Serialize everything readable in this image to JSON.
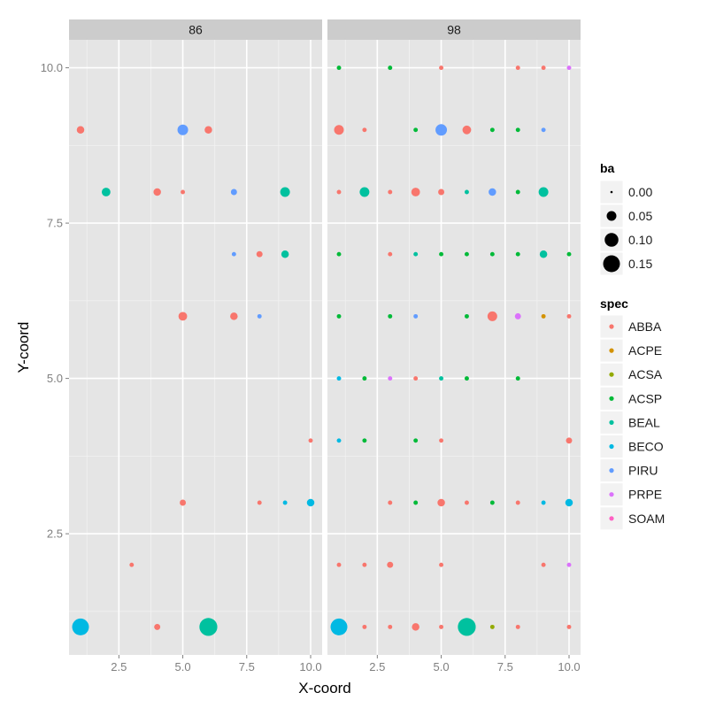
{
  "chart_data": {
    "type": "scatter",
    "xlabel": "X-coord",
    "ylabel": "Y-coord",
    "xlim": [
      0.55,
      10.45
    ],
    "ylim": [
      0.55,
      10.45
    ],
    "x_ticks": [
      2.5,
      5.0,
      7.5,
      10.0
    ],
    "x_tick_labels": [
      "2.5",
      "5.0",
      "7.5",
      "10.0"
    ],
    "y_ticks": [
      2.5,
      5.0,
      7.5,
      10.0
    ],
    "y_tick_labels": [
      "2.5",
      "5.0",
      "7.5",
      "10.0"
    ],
    "grid": true,
    "facets": [
      "86",
      "98"
    ],
    "legend_placement": "right",
    "size_legend": {
      "title": "ba",
      "breaks": [
        0.0,
        0.05,
        0.1,
        0.15
      ],
      "labels": [
        "0.00",
        "0.05",
        "0.10",
        "0.15"
      ]
    },
    "color_legend": {
      "title": "spec",
      "species": [
        "ABBA",
        "ACPE",
        "ACSA",
        "ACSP",
        "BEAL",
        "BECO",
        "PIRU",
        "PRPE",
        "SOAM"
      ],
      "colors": [
        "#F8766D",
        "#D39200",
        "#93AA00",
        "#00BA38",
        "#00C19F",
        "#00B9E3",
        "#619CFF",
        "#DB72FB",
        "#FF61C3"
      ]
    },
    "points": [
      {
        "facet": "86",
        "x": 1,
        "y": 9,
        "spec": "ABBA",
        "ba": 0.03
      },
      {
        "facet": "86",
        "x": 5,
        "y": 9,
        "spec": "PIRU",
        "ba": 0.06
      },
      {
        "facet": "86",
        "x": 6,
        "y": 9,
        "spec": "ABBA",
        "ba": 0.03
      },
      {
        "facet": "86",
        "x": 2,
        "y": 8,
        "spec": "BEAL",
        "ba": 0.04
      },
      {
        "facet": "86",
        "x": 4,
        "y": 8,
        "spec": "ABBA",
        "ba": 0.03
      },
      {
        "facet": "86",
        "x": 5,
        "y": 8,
        "spec": "ABBA",
        "ba": 0.01
      },
      {
        "facet": "86",
        "x": 7,
        "y": 8,
        "spec": "PIRU",
        "ba": 0.02
      },
      {
        "facet": "86",
        "x": 9,
        "y": 8,
        "spec": "BEAL",
        "ba": 0.05
      },
      {
        "facet": "86",
        "x": 7,
        "y": 7,
        "spec": "PIRU",
        "ba": 0.01
      },
      {
        "facet": "86",
        "x": 8,
        "y": 7,
        "spec": "ABBA",
        "ba": 0.02
      },
      {
        "facet": "86",
        "x": 9,
        "y": 7,
        "spec": "BEAL",
        "ba": 0.03
      },
      {
        "facet": "86",
        "x": 5,
        "y": 6,
        "spec": "ABBA",
        "ba": 0.04
      },
      {
        "facet": "86",
        "x": 7,
        "y": 6,
        "spec": "ABBA",
        "ba": 0.03
      },
      {
        "facet": "86",
        "x": 8,
        "y": 6,
        "spec": "PIRU",
        "ba": 0.01
      },
      {
        "facet": "86",
        "x": 10,
        "y": 4,
        "spec": "ABBA",
        "ba": 0.01
      },
      {
        "facet": "86",
        "x": 5,
        "y": 3,
        "spec": "ABBA",
        "ba": 0.02
      },
      {
        "facet": "86",
        "x": 8,
        "y": 3,
        "spec": "ABBA",
        "ba": 0.01
      },
      {
        "facet": "86",
        "x": 9,
        "y": 3,
        "spec": "BECO",
        "ba": 0.01
      },
      {
        "facet": "86",
        "x": 10,
        "y": 3,
        "spec": "BECO",
        "ba": 0.03
      },
      {
        "facet": "86",
        "x": 3,
        "y": 2,
        "spec": "ABBA",
        "ba": 0.01
      },
      {
        "facet": "86",
        "x": 1,
        "y": 1,
        "spec": "BECO",
        "ba": 0.15
      },
      {
        "facet": "86",
        "x": 4,
        "y": 1,
        "spec": "ABBA",
        "ba": 0.02
      },
      {
        "facet": "86",
        "x": 6,
        "y": 1,
        "spec": "BEAL",
        "ba": 0.17
      },
      {
        "facet": "98",
        "x": 1,
        "y": 10,
        "spec": "ACSP",
        "ba": 0.01
      },
      {
        "facet": "98",
        "x": 3,
        "y": 10,
        "spec": "ACSP",
        "ba": 0.01
      },
      {
        "facet": "98",
        "x": 5,
        "y": 10,
        "spec": "ABBA",
        "ba": 0.01
      },
      {
        "facet": "98",
        "x": 8,
        "y": 10,
        "spec": "ABBA",
        "ba": 0.01
      },
      {
        "facet": "98",
        "x": 9,
        "y": 10,
        "spec": "ABBA",
        "ba": 0.01
      },
      {
        "facet": "98",
        "x": 10,
        "y": 10,
        "spec": "PRPE",
        "ba": 0.01
      },
      {
        "facet": "98",
        "x": 1,
        "y": 9,
        "spec": "ABBA",
        "ba": 0.05
      },
      {
        "facet": "98",
        "x": 2,
        "y": 9,
        "spec": "ABBA",
        "ba": 0.01
      },
      {
        "facet": "98",
        "x": 4,
        "y": 9,
        "spec": "ACSP",
        "ba": 0.01
      },
      {
        "facet": "98",
        "x": 5,
        "y": 9,
        "spec": "PIRU",
        "ba": 0.07
      },
      {
        "facet": "98",
        "x": 6,
        "y": 9,
        "spec": "ABBA",
        "ba": 0.04
      },
      {
        "facet": "98",
        "x": 7,
        "y": 9,
        "spec": "ACSP",
        "ba": 0.01
      },
      {
        "facet": "98",
        "x": 8,
        "y": 9,
        "spec": "ACSP",
        "ba": 0.01
      },
      {
        "facet": "98",
        "x": 9,
        "y": 9,
        "spec": "PIRU",
        "ba": 0.01
      },
      {
        "facet": "98",
        "x": 1,
        "y": 8,
        "spec": "ABBA",
        "ba": 0.01
      },
      {
        "facet": "98",
        "x": 2,
        "y": 8,
        "spec": "BEAL",
        "ba": 0.05
      },
      {
        "facet": "98",
        "x": 3,
        "y": 8,
        "spec": "ABBA",
        "ba": 0.01
      },
      {
        "facet": "98",
        "x": 4,
        "y": 8,
        "spec": "ABBA",
        "ba": 0.04
      },
      {
        "facet": "98",
        "x": 5,
        "y": 8,
        "spec": "ABBA",
        "ba": 0.02
      },
      {
        "facet": "98",
        "x": 6,
        "y": 8,
        "spec": "BEAL",
        "ba": 0.01
      },
      {
        "facet": "98",
        "x": 7,
        "y": 8,
        "spec": "PIRU",
        "ba": 0.03
      },
      {
        "facet": "98",
        "x": 8,
        "y": 8,
        "spec": "ACSP",
        "ba": 0.01
      },
      {
        "facet": "98",
        "x": 9,
        "y": 8,
        "spec": "BEAL",
        "ba": 0.05
      },
      {
        "facet": "98",
        "x": 1,
        "y": 7,
        "spec": "ACSP",
        "ba": 0.01
      },
      {
        "facet": "98",
        "x": 3,
        "y": 7,
        "spec": "ABBA",
        "ba": 0.01
      },
      {
        "facet": "98",
        "x": 4,
        "y": 7,
        "spec": "BEAL",
        "ba": 0.01
      },
      {
        "facet": "98",
        "x": 5,
        "y": 7,
        "spec": "ACSP",
        "ba": 0.01
      },
      {
        "facet": "98",
        "x": 6,
        "y": 7,
        "spec": "ACSP",
        "ba": 0.01
      },
      {
        "facet": "98",
        "x": 7,
        "y": 7,
        "spec": "ACSP",
        "ba": 0.01
      },
      {
        "facet": "98",
        "x": 8,
        "y": 7,
        "spec": "ACSP",
        "ba": 0.01
      },
      {
        "facet": "98",
        "x": 9,
        "y": 7,
        "spec": "BEAL",
        "ba": 0.03
      },
      {
        "facet": "98",
        "x": 10,
        "y": 7,
        "spec": "ACSP",
        "ba": 0.01
      },
      {
        "facet": "98",
        "x": 1,
        "y": 6,
        "spec": "ACSP",
        "ba": 0.01
      },
      {
        "facet": "98",
        "x": 3,
        "y": 6,
        "spec": "ACSP",
        "ba": 0.01
      },
      {
        "facet": "98",
        "x": 4,
        "y": 6,
        "spec": "PIRU",
        "ba": 0.01
      },
      {
        "facet": "98",
        "x": 6,
        "y": 6,
        "spec": "ACSP",
        "ba": 0.01
      },
      {
        "facet": "98",
        "x": 7,
        "y": 6,
        "spec": "ABBA",
        "ba": 0.05
      },
      {
        "facet": "98",
        "x": 8,
        "y": 6,
        "spec": "PRPE",
        "ba": 0.02
      },
      {
        "facet": "98",
        "x": 9,
        "y": 6,
        "spec": "ACPE",
        "ba": 0.01
      },
      {
        "facet": "98",
        "x": 10,
        "y": 6,
        "spec": "ABBA",
        "ba": 0.01
      },
      {
        "facet": "98",
        "x": 1,
        "y": 5,
        "spec": "BECO",
        "ba": 0.01
      },
      {
        "facet": "98",
        "x": 2,
        "y": 5,
        "spec": "ACSP",
        "ba": 0.01
      },
      {
        "facet": "98",
        "x": 3,
        "y": 5,
        "spec": "PRPE",
        "ba": 0.01
      },
      {
        "facet": "98",
        "x": 4,
        "y": 5,
        "spec": "ABBA",
        "ba": 0.01
      },
      {
        "facet": "98",
        "x": 5,
        "y": 5,
        "spec": "BEAL",
        "ba": 0.01
      },
      {
        "facet": "98",
        "x": 6,
        "y": 5,
        "spec": "ACSP",
        "ba": 0.01
      },
      {
        "facet": "98",
        "x": 8,
        "y": 5,
        "spec": "ACSP",
        "ba": 0.01
      },
      {
        "facet": "98",
        "x": 1,
        "y": 4,
        "spec": "BECO",
        "ba": 0.01
      },
      {
        "facet": "98",
        "x": 2,
        "y": 4,
        "spec": "ACSP",
        "ba": 0.01
      },
      {
        "facet": "98",
        "x": 4,
        "y": 4,
        "spec": "ACSP",
        "ba": 0.01
      },
      {
        "facet": "98",
        "x": 5,
        "y": 4,
        "spec": "ABBA",
        "ba": 0.01
      },
      {
        "facet": "98",
        "x": 10,
        "y": 4,
        "spec": "ABBA",
        "ba": 0.02
      },
      {
        "facet": "98",
        "x": 3,
        "y": 3,
        "spec": "ABBA",
        "ba": 0.01
      },
      {
        "facet": "98",
        "x": 4,
        "y": 3,
        "spec": "ACSP",
        "ba": 0.01
      },
      {
        "facet": "98",
        "x": 5,
        "y": 3,
        "spec": "ABBA",
        "ba": 0.03
      },
      {
        "facet": "98",
        "x": 6,
        "y": 3,
        "spec": "ABBA",
        "ba": 0.01
      },
      {
        "facet": "98",
        "x": 7,
        "y": 3,
        "spec": "ACSP",
        "ba": 0.01
      },
      {
        "facet": "98",
        "x": 8,
        "y": 3,
        "spec": "ABBA",
        "ba": 0.01
      },
      {
        "facet": "98",
        "x": 9,
        "y": 3,
        "spec": "BECO",
        "ba": 0.01
      },
      {
        "facet": "98",
        "x": 10,
        "y": 3,
        "spec": "BECO",
        "ba": 0.03
      },
      {
        "facet": "98",
        "x": 1,
        "y": 2,
        "spec": "ABBA",
        "ba": 0.01
      },
      {
        "facet": "98",
        "x": 2,
        "y": 2,
        "spec": "ABBA",
        "ba": 0.01
      },
      {
        "facet": "98",
        "x": 3,
        "y": 2,
        "spec": "ABBA",
        "ba": 0.02
      },
      {
        "facet": "98",
        "x": 5,
        "y": 2,
        "spec": "ABBA",
        "ba": 0.01
      },
      {
        "facet": "98",
        "x": 9,
        "y": 2,
        "spec": "ABBA",
        "ba": 0.01
      },
      {
        "facet": "98",
        "x": 10,
        "y": 2,
        "spec": "PRPE",
        "ba": 0.01
      },
      {
        "facet": "98",
        "x": 1,
        "y": 1,
        "spec": "BECO",
        "ba": 0.15
      },
      {
        "facet": "98",
        "x": 2,
        "y": 1,
        "spec": "ABBA",
        "ba": 0.01
      },
      {
        "facet": "98",
        "x": 3,
        "y": 1,
        "spec": "ABBA",
        "ba": 0.01
      },
      {
        "facet": "98",
        "x": 4,
        "y": 1,
        "spec": "ABBA",
        "ba": 0.03
      },
      {
        "facet": "98",
        "x": 5,
        "y": 1,
        "spec": "ABBA",
        "ba": 0.01
      },
      {
        "facet": "98",
        "x": 6,
        "y": 1,
        "spec": "BEAL",
        "ba": 0.17
      },
      {
        "facet": "98",
        "x": 7,
        "y": 1,
        "spec": "ACSA",
        "ba": 0.01
      },
      {
        "facet": "98",
        "x": 8,
        "y": 1,
        "spec": "ABBA",
        "ba": 0.01
      },
      {
        "facet": "98",
        "x": 10,
        "y": 1,
        "spec": "ABBA",
        "ba": 0.01
      }
    ]
  }
}
